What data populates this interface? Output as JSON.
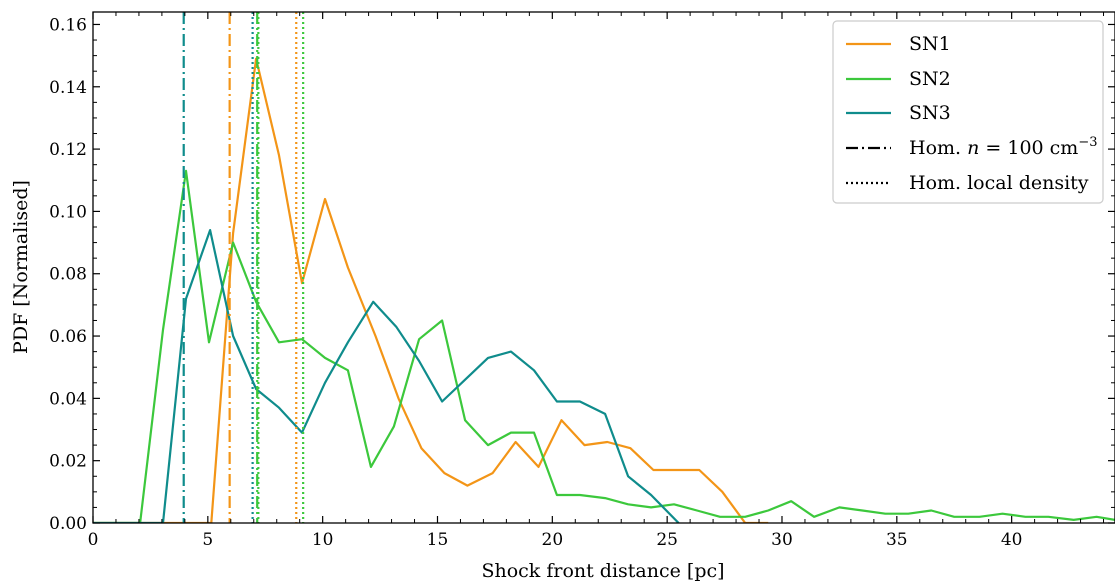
{
  "chart_data": {
    "type": "line",
    "xlabel": "Shock front distance [pc]",
    "ylabel": "PDF [Normalised]",
    "xlim": [
      0,
      44.5
    ],
    "ylim": [
      0,
      0.164
    ],
    "xticks": [
      0,
      5,
      10,
      15,
      20,
      25,
      30,
      35,
      40
    ],
    "yticks": [
      0.0,
      0.02,
      0.04,
      0.06,
      0.08,
      0.1,
      0.12,
      0.14,
      0.16
    ],
    "xtick_labels": [
      "0",
      "5",
      "10",
      "15",
      "20",
      "25",
      "30",
      "35",
      "40"
    ],
    "ytick_labels": [
      "0.00",
      "0.02",
      "0.04",
      "0.06",
      "0.08",
      "0.10",
      "0.12",
      "0.14",
      "0.16"
    ],
    "grid": false,
    "legend_position": "top-right",
    "series": [
      {
        "name": "SN1",
        "color": "#f39517",
        "x": [
          0,
          5.15,
          6.1,
          7.1,
          8.1,
          9.1,
          10.1,
          11.1,
          12.3,
          13.3,
          14.3,
          15.3,
          16.3,
          17.4,
          18.4,
          19.4,
          20.4,
          21.4,
          22.4,
          23.4,
          24.4,
          25.4,
          26.4,
          27.4,
          28.4,
          29.4
        ],
        "y": [
          0,
          0,
          0.093,
          0.149,
          0.118,
          0.077,
          0.104,
          0.082,
          0.06,
          0.04,
          0.024,
          0.016,
          0.012,
          0.016,
          0.026,
          0.018,
          0.033,
          0.025,
          0.026,
          0.024,
          0.017,
          0.017,
          0.017,
          0.01,
          0,
          0
        ]
      },
      {
        "name": "SN2",
        "color": "#3cc83c",
        "x": [
          0,
          2.05,
          3.05,
          4.05,
          5.05,
          6.1,
          7.1,
          8.1,
          9.1,
          10.1,
          11.1,
          12.1,
          13.1,
          14.2,
          15.2,
          16.2,
          17.2,
          18.2,
          19.2,
          20.2,
          21.2,
          22.3,
          23.3,
          24.3,
          25.3,
          26.3,
          27.3,
          28.4,
          29.4,
          30.4,
          31.4,
          32.5,
          33.5,
          34.5,
          35.5,
          36.5,
          37.5,
          38.6,
          39.6,
          40.6,
          41.6,
          42.7,
          43.7,
          44.5
        ],
        "y": [
          0,
          0.0,
          0.062,
          0.113,
          0.058,
          0.09,
          0.071,
          0.058,
          0.059,
          0.053,
          0.049,
          0.018,
          0.031,
          0.059,
          0.065,
          0.033,
          0.025,
          0.029,
          0.029,
          0.009,
          0.009,
          0.008,
          0.006,
          0.005,
          0.006,
          0.004,
          0.002,
          0.002,
          0.004,
          0.007,
          0.002,
          0.005,
          0.004,
          0.003,
          0.003,
          0.004,
          0.002,
          0.002,
          0.003,
          0.002,
          0.002,
          0.001,
          0.002,
          0.001
        ]
      },
      {
        "name": "SN3",
        "color": "#0f8c8c",
        "x": [
          0,
          3.05,
          4.05,
          5.1,
          6.1,
          7.1,
          8.1,
          9.1,
          10.1,
          11.1,
          12.2,
          13.2,
          14.2,
          15.2,
          16.2,
          17.2,
          18.2,
          19.2,
          20.2,
          21.2,
          22.3,
          23.3,
          24.3,
          25.5
        ],
        "y": [
          0,
          0,
          0.072,
          0.094,
          0.06,
          0.043,
          0.037,
          0.029,
          0.045,
          0.058,
          0.071,
          0.063,
          0.052,
          0.039,
          0.046,
          0.053,
          0.055,
          0.049,
          0.039,
          0.039,
          0.035,
          0.015,
          0.009,
          0
        ]
      }
    ],
    "vlines": [
      {
        "x": 3.95,
        "color": "#0f8c8c",
        "style": "dashdot"
      },
      {
        "x": 5.95,
        "color": "#f39517",
        "style": "dashdot"
      },
      {
        "x": 7.15,
        "color": "#3cc83c",
        "style": "dashdot"
      },
      {
        "x": 6.95,
        "color": "#0f8c8c",
        "style": "dotted"
      },
      {
        "x": 7.2,
        "color": "#3cc83c",
        "style": "dotted"
      },
      {
        "x": 8.85,
        "color": "#f39517",
        "style": "dotted"
      },
      {
        "x": 9.15,
        "color": "#3cc83c",
        "style": "dotted"
      }
    ],
    "legend": [
      {
        "label": "SN1",
        "style": "solid",
        "color": "#f39517"
      },
      {
        "label": "SN2",
        "style": "solid",
        "color": "#3cc83c"
      },
      {
        "label": "SN3",
        "style": "solid",
        "color": "#0f8c8c"
      },
      {
        "label_parts": [
          "Hom. ",
          "n",
          " = 100 cm",
          "−3"
        ],
        "style": "dashdot",
        "color": "#000000"
      },
      {
        "label": "Hom. local density",
        "style": "dotted",
        "color": "#000000"
      }
    ]
  }
}
